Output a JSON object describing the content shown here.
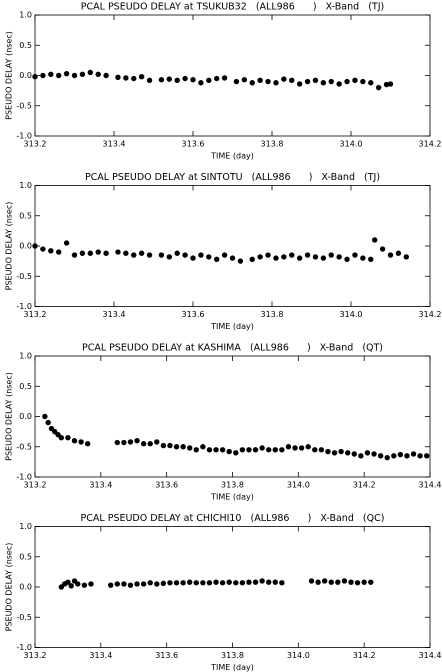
{
  "chart_data": [
    {
      "type": "scatter",
      "title": "PCAL PSEUDO DELAY at TSUKUB32   (ALL986      )   X-Band   (TJ)",
      "x_label": "TIME (day)",
      "y_label": "PSEUDO DELAY (nsec)",
      "color": "#000000",
      "xlim": [
        313.2,
        314.2
      ],
      "xticks": [
        313.2,
        313.4,
        313.6,
        313.8,
        {
          "value": 314.0,
          "label": "314.0"
        },
        314.2
      ],
      "ylim": [
        -1,
        1
      ],
      "yticks": [
        {
          "value": -1,
          "label": "-1.0"
        },
        -0.5,
        {
          "value": 0,
          "label": "0.0"
        },
        0.5,
        {
          "value": 1,
          "label": "1.0"
        }
      ],
      "x": [
        313.2,
        313.22,
        313.24,
        313.26,
        313.28,
        313.3,
        313.32,
        313.34,
        313.36,
        313.38,
        313.41,
        313.43,
        313.45,
        313.47,
        313.49,
        313.52,
        313.54,
        313.56,
        313.58,
        313.6,
        313.62,
        313.64,
        313.66,
        313.68,
        313.71,
        313.73,
        313.75,
        313.77,
        313.79,
        313.81,
        313.83,
        313.85,
        313.87,
        313.89,
        313.91,
        313.93,
        313.95,
        313.97,
        313.99,
        314.01,
        314.03,
        314.05,
        314.07,
        314.09,
        314.1
      ],
      "values": [
        -0.02,
        0.0,
        0.02,
        0.0,
        0.03,
        0.0,
        0.02,
        0.05,
        0.02,
        0.0,
        -0.03,
        -0.04,
        -0.05,
        -0.02,
        -0.08,
        -0.07,
        -0.06,
        -0.08,
        -0.05,
        -0.07,
        -0.12,
        -0.08,
        -0.05,
        -0.04,
        -0.1,
        -0.07,
        -0.12,
        -0.08,
        -0.1,
        -0.12,
        -0.06,
        -0.08,
        -0.14,
        -0.1,
        -0.08,
        -0.12,
        -0.1,
        -0.14,
        -0.1,
        -0.08,
        -0.1,
        -0.12,
        -0.2,
        -0.15,
        -0.14
      ]
    },
    {
      "type": "scatter",
      "title": "PCAL PSEUDO DELAY at SINTOTU   (ALL986      )   X-Band   (TJ)",
      "x_label": "TIME (day)",
      "y_label": "PSEUDO DELAY (nsec)",
      "color": "#000000",
      "xlim": [
        313.2,
        314.2
      ],
      "xticks": [
        313.2,
        313.4,
        313.6,
        313.8,
        {
          "value": 314.0,
          "label": "314.0"
        },
        314.2
      ],
      "ylim": [
        -1,
        1
      ],
      "yticks": [
        {
          "value": -1,
          "label": "-1.0"
        },
        -0.5,
        {
          "value": 0,
          "label": "0.0"
        },
        0.5,
        {
          "value": 1,
          "label": "1.0"
        }
      ],
      "x": [
        313.2,
        313.22,
        313.24,
        313.26,
        313.28,
        313.3,
        313.32,
        313.34,
        313.36,
        313.38,
        313.41,
        313.43,
        313.45,
        313.47,
        313.49,
        313.52,
        313.54,
        313.56,
        313.58,
        313.6,
        313.62,
        313.64,
        313.66,
        313.68,
        313.7,
        313.72,
        313.75,
        313.77,
        313.79,
        313.81,
        313.83,
        313.85,
        313.87,
        313.89,
        313.91,
        313.93,
        313.95,
        313.97,
        313.99,
        314.01,
        314.03,
        314.05,
        314.06,
        314.08,
        314.1,
        314.12,
        314.14
      ],
      "values": [
        0.0,
        -0.05,
        -0.08,
        -0.1,
        0.05,
        -0.15,
        -0.12,
        -0.12,
        -0.1,
        -0.12,
        -0.1,
        -0.12,
        -0.15,
        -0.12,
        -0.15,
        -0.15,
        -0.18,
        -0.12,
        -0.15,
        -0.2,
        -0.15,
        -0.18,
        -0.22,
        -0.15,
        -0.2,
        -0.25,
        -0.22,
        -0.18,
        -0.15,
        -0.2,
        -0.18,
        -0.15,
        -0.2,
        -0.15,
        -0.18,
        -0.2,
        -0.15,
        -0.18,
        -0.22,
        -0.15,
        -0.2,
        -0.22,
        0.1,
        -0.05,
        -0.15,
        -0.12,
        -0.18
      ]
    },
    {
      "type": "scatter",
      "title": "PCAL PSEUDO DELAY at KASHIMA   (ALL986      )   X-Band   (QT)",
      "x_label": "TIME (day)",
      "y_label": "PSEUDO DELAY (nsec)",
      "color": "#000000",
      "xlim": [
        313.2,
        314.4
      ],
      "xticks": [
        313.2,
        313.4,
        313.6,
        313.8,
        {
          "value": 314.0,
          "label": "314.0"
        },
        314.2,
        314.4
      ],
      "ylim": [
        -1,
        1
      ],
      "yticks": [
        {
          "value": -1,
          "label": "-1.0"
        },
        -0.5,
        {
          "value": 0,
          "label": "0.0"
        },
        0.5,
        {
          "value": 1,
          "label": "1.0"
        }
      ],
      "x": [
        313.23,
        313.24,
        313.25,
        313.26,
        313.27,
        313.28,
        313.3,
        313.32,
        313.34,
        313.36,
        313.45,
        313.47,
        313.49,
        313.51,
        313.53,
        313.55,
        313.57,
        313.59,
        313.61,
        313.63,
        313.65,
        313.67,
        313.69,
        313.71,
        313.73,
        313.75,
        313.77,
        313.79,
        313.81,
        313.83,
        313.85,
        313.87,
        313.89,
        313.91,
        313.93,
        313.95,
        313.97,
        313.99,
        314.01,
        314.03,
        314.05,
        314.07,
        314.09,
        314.11,
        314.13,
        314.15,
        314.17,
        314.19,
        314.21,
        314.23,
        314.25,
        314.27,
        314.29,
        314.31,
        314.33,
        314.35,
        314.37,
        314.39
      ],
      "values": [
        0.0,
        -0.1,
        -0.2,
        -0.25,
        -0.3,
        -0.35,
        -0.35,
        -0.4,
        -0.42,
        -0.45,
        -0.43,
        -0.43,
        -0.42,
        -0.4,
        -0.45,
        -0.45,
        -0.42,
        -0.48,
        -0.48,
        -0.5,
        -0.5,
        -0.52,
        -0.55,
        -0.5,
        -0.55,
        -0.55,
        -0.55,
        -0.58,
        -0.6,
        -0.55,
        -0.55,
        -0.55,
        -0.52,
        -0.55,
        -0.55,
        -0.55,
        -0.5,
        -0.52,
        -0.52,
        -0.5,
        -0.55,
        -0.55,
        -0.58,
        -0.6,
        -0.58,
        -0.6,
        -0.62,
        -0.65,
        -0.6,
        -0.62,
        -0.65,
        -0.68,
        -0.65,
        -0.63,
        -0.65,
        -0.62,
        -0.65,
        -0.65
      ]
    },
    {
      "type": "scatter",
      "title": "PCAL PSEUDO DELAY at CHICHI10   (ALL986      )   X-Band   (QC)",
      "x_label": "TIME (day)",
      "y_label": "PSEUDO DELAY (nsec)",
      "color": "#000000",
      "xlim": [
        313.2,
        314.4
      ],
      "xticks": [
        313.2,
        313.4,
        313.6,
        313.8,
        {
          "value": 314.0,
          "label": "314.0"
        },
        314.2,
        314.4
      ],
      "ylim": [
        -1,
        1
      ],
      "yticks": [
        {
          "value": -1,
          "label": "-1.0"
        },
        -0.5,
        {
          "value": 0,
          "label": "0.0"
        },
        0.5,
        {
          "value": 1,
          "label": "1.0"
        }
      ],
      "x": [
        313.28,
        313.29,
        313.3,
        313.31,
        313.32,
        313.33,
        313.35,
        313.37,
        313.43,
        313.45,
        313.47,
        313.49,
        313.51,
        313.53,
        313.55,
        313.57,
        313.59,
        313.61,
        313.63,
        313.65,
        313.67,
        313.69,
        313.71,
        313.73,
        313.75,
        313.77,
        313.79,
        313.81,
        313.83,
        313.85,
        313.87,
        313.89,
        313.91,
        313.93,
        313.95,
        314.04,
        314.06,
        314.08,
        314.1,
        314.12,
        314.14,
        314.16,
        314.18,
        314.2,
        314.22
      ],
      "values": [
        0.0,
        0.05,
        0.08,
        0.02,
        0.1,
        0.05,
        0.03,
        0.05,
        0.03,
        0.05,
        0.05,
        0.03,
        0.05,
        0.05,
        0.07,
        0.05,
        0.06,
        0.07,
        0.07,
        0.07,
        0.08,
        0.07,
        0.07,
        0.07,
        0.08,
        0.07,
        0.08,
        0.07,
        0.07,
        0.08,
        0.08,
        0.1,
        0.08,
        0.08,
        0.07,
        0.1,
        0.08,
        0.1,
        0.08,
        0.08,
        0.1,
        0.08,
        0.07,
        0.08,
        0.08
      ]
    }
  ]
}
